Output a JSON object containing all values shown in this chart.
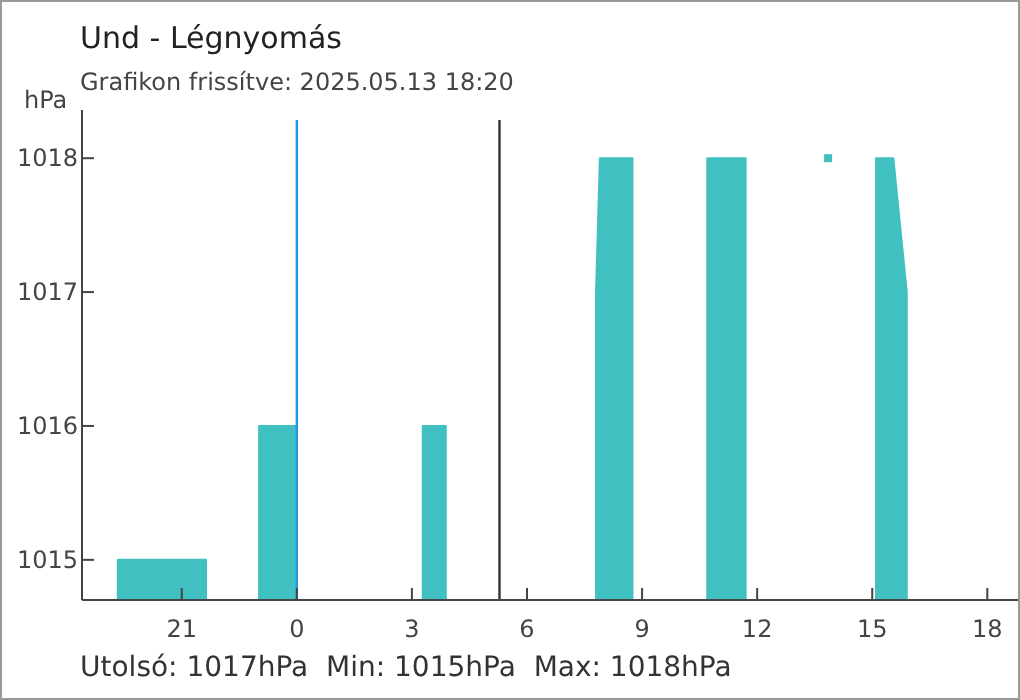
{
  "chart_data": {
    "type": "area",
    "title": "Und - Légnyomás",
    "subtitle": "Grafikon frissítve: 2025.05.13 18:20",
    "ylabel": "hPa",
    "annotations": [
      "Utolsó: 1017hPa  Min: 1015hPa  Max: 1018hPa"
    ],
    "series": [
      {
        "color": "#40c0c0",
        "x": [
          "2025-05-12T19:20",
          "2025-05-12T21:38",
          "2025-05-12T22:30",
          "2025-05-12T23:01",
          "2025-05-13T00:00",
          "2025-05-13T01:30",
          "2025-05-13T03:17",
          "2025-05-13T03:53",
          "2025-05-13T06:00",
          "2025-05-13T07:48",
          "2025-05-13T07:54",
          "2025-05-13T08:45",
          "2025-05-13T09:42",
          "2025-05-13T10:42",
          "2025-05-13T11:42",
          "2025-05-13T12:48",
          "2025-05-13T15:06",
          "2025-05-13T15:33",
          "2025-05-13T15:54"
        ],
        "values": [
          1015,
          1015,
          null,
          1016,
          1016,
          null,
          1016,
          1016,
          null,
          1017,
          1018,
          1018,
          null,
          1018,
          1018,
          null,
          1018,
          1018,
          1017
        ]
      },
      {
        "type": "scatter",
        "marker": "square",
        "color": "#40c0c0",
        "x": [
          "2025-05-13T13:51"
        ],
        "values": [
          1018
        ]
      }
    ],
    "xlim": [
      "2025-05-12T18:24",
      "2025-05-13T18:48"
    ],
    "xticks": [
      {
        "value": "2025-05-12T21:00",
        "label": "21"
      },
      {
        "value": "2025-05-13T00:00",
        "label": "0"
      },
      {
        "value": "2025-05-13T03:00",
        "label": "3"
      },
      {
        "value": "2025-05-13T06:00",
        "label": "6"
      },
      {
        "value": "2025-05-13T09:00",
        "label": "9"
      },
      {
        "value": "2025-05-13T12:00",
        "label": "12"
      },
      {
        "value": "2025-05-13T15:00",
        "label": "15"
      },
      {
        "value": "2025-05-13T18:00",
        "label": "18"
      }
    ],
    "ylim": [
      1014.7,
      1018.36
    ],
    "yticks": [
      1015,
      1016,
      1017,
      1018
    ],
    "ref_lines": [
      {
        "axis": "x",
        "value": "2025-05-13T00:00",
        "color": "#2196e0"
      },
      {
        "axis": "x",
        "value": "2025-05-13T05:17",
        "color": "#333333"
      }
    ],
    "grid": false
  }
}
